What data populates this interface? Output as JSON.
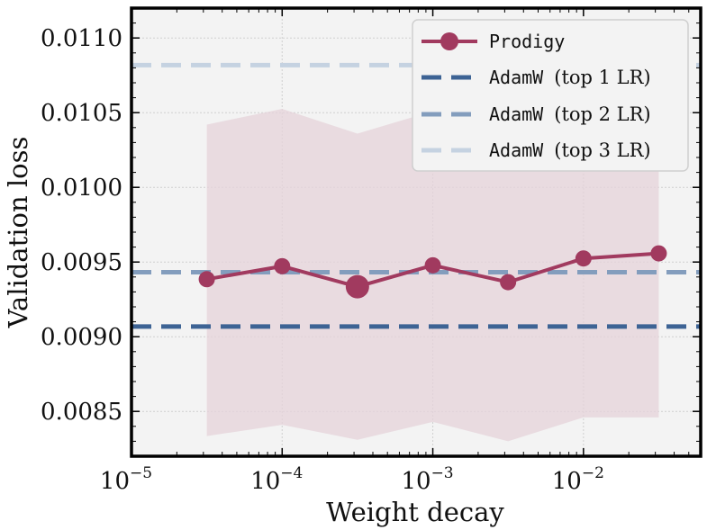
{
  "chart_data": {
    "type": "line",
    "xlabel": "Weight decay",
    "ylabel": "Validation loss",
    "xscale": "log",
    "xlim": [
      1e-05,
      0.06
    ],
    "ylim": [
      0.0082,
      0.0112
    ],
    "x_ticks": [
      {
        "base": "10",
        "exp": "−5",
        "value": 1e-05
      },
      {
        "base": "10",
        "exp": "−4",
        "value": 0.0001
      },
      {
        "base": "10",
        "exp": "−3",
        "value": 0.001
      },
      {
        "base": "10",
        "exp": "−2",
        "value": 0.01
      }
    ],
    "y_ticks": [
      "0.0085",
      "0.0090",
      "0.0095",
      "0.0100",
      "0.0105",
      "0.0110"
    ],
    "y_tick_values": [
      0.0085,
      0.009,
      0.0095,
      0.01,
      0.0105,
      0.011
    ],
    "grid": true,
    "legend_position": "top-right",
    "series": [
      {
        "name": "Prodigy",
        "label_style": "mono",
        "color": "#a13a5f",
        "x": [
          3.16e-05,
          0.0001,
          0.000316,
          0.001,
          0.00316,
          0.01,
          0.0316
        ],
        "y": [
          0.009385,
          0.009472,
          0.009335,
          0.009478,
          0.009365,
          0.009524,
          0.009558
        ],
        "highlight_index": 2,
        "band_lower": [
          0.008335,
          0.00841,
          0.00831,
          0.00843,
          0.0083,
          0.00846,
          0.00846
        ],
        "band_upper": [
          0.01042,
          0.010525,
          0.01036,
          0.01051,
          0.0105,
          0.01058,
          0.01058
        ],
        "band_color": "#e6d3da"
      }
    ],
    "reference_lines": [
      {
        "name": "AdamW",
        "suffix": "(top 1 LR)",
        "y": 0.009068,
        "color": "#3d6394"
      },
      {
        "name": "AdamW",
        "suffix": "(top 2 LR)",
        "y": 0.009432,
        "color": "#839dbd"
      },
      {
        "name": "AdamW",
        "suffix": "(top 3 LR)",
        "y": 0.010818,
        "color": "#c5d2e1"
      }
    ]
  }
}
